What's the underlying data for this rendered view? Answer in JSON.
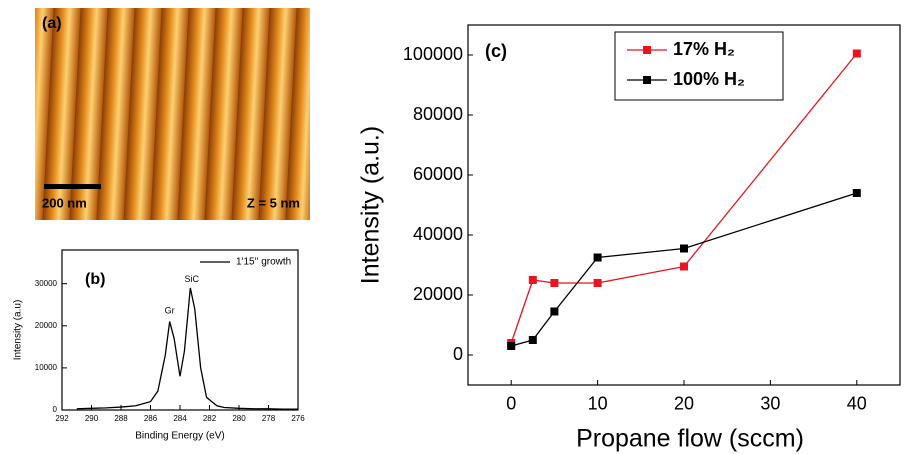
{
  "panel_a": {
    "label": "(a)",
    "scale_bar": "200 nm",
    "z_range": "Z = 5 nm"
  },
  "chart_data": [
    {
      "type": "line",
      "panel_label": "(b)",
      "xlabel": "Binding Energy (eV)",
      "ylabel": "Intensity (a.u)",
      "x": [
        291,
        290,
        289,
        288,
        287,
        286,
        285.5,
        285,
        284.7,
        284.4,
        284,
        283.7,
        283.3,
        283,
        282.6,
        282.2,
        281.5,
        281,
        280,
        279,
        278,
        277,
        276
      ],
      "series": [
        {
          "name": "1'15'' growth",
          "color": "#000000",
          "values": [
            300,
            400,
            500,
            700,
            1000,
            2000,
            4500,
            13000,
            21000,
            17000,
            8000,
            14000,
            29000,
            24000,
            10000,
            3000,
            1000,
            600,
            400,
            300,
            300,
            200,
            200
          ]
        }
      ],
      "annotations": [
        "Gr",
        "SiC"
      ],
      "xlim": [
        292,
        276
      ],
      "xticks": [
        292,
        290,
        288,
        286,
        284,
        282,
        280,
        278,
        276
      ],
      "ylim": [
        0,
        38000
      ],
      "yticks": [
        0,
        10000,
        20000,
        30000
      ],
      "legend": "upper right",
      "markers": "none"
    },
    {
      "type": "line",
      "panel_label": "(c)",
      "xlabel": "Propane flow (sccm)",
      "ylabel": "Intensity (a.u.)",
      "x": [
        0,
        2.5,
        5,
        10,
        20,
        40
      ],
      "series": [
        {
          "name": "17% H₂",
          "color": "#e8141e",
          "values": [
            4000,
            25000,
            24000,
            24000,
            29500,
            100500
          ]
        },
        {
          "name": "100% H₂",
          "color": "#000000",
          "values": [
            3000,
            5000,
            14500,
            32500,
            35500,
            54000
          ]
        }
      ],
      "xlim": [
        -5,
        45
      ],
      "xticks": [
        0,
        10,
        20,
        30,
        40
      ],
      "ylim": [
        -10000,
        110000
      ],
      "yticks": [
        0,
        20000,
        40000,
        60000,
        80000,
        100000
      ],
      "legend": "upper center",
      "markers": "square"
    }
  ]
}
